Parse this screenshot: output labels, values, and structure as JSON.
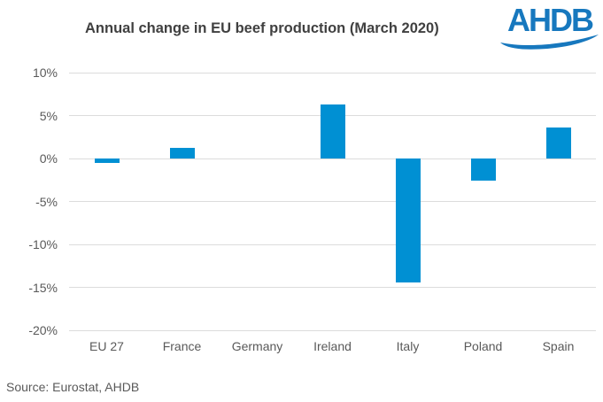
{
  "title": "Annual change in EU beef production (March 2020)",
  "logo": {
    "text": "AHDB"
  },
  "source": "Source: Eurostat, AHDB",
  "colors": {
    "bar": "#0090D3",
    "grid": "#DCDCDC",
    "title_text": "#404040",
    "axis_text": "#595959",
    "logo_blue": "#1778BE"
  },
  "chart_data": {
    "type": "bar",
    "title": "Annual change in EU beef production (March 2020)",
    "categories": [
      "EU 27",
      "France",
      "Germany",
      "Ireland",
      "Italy",
      "Poland",
      "Spain"
    ],
    "values": [
      -0.5,
      1.2,
      0.0,
      6.3,
      -14.4,
      -2.6,
      3.6
    ],
    "xlabel": "",
    "ylabel": "",
    "ylim": [
      -20,
      10
    ],
    "yticks": [
      10,
      5,
      0,
      -5,
      -10,
      -15,
      -20
    ],
    "ytick_labels": [
      "10%",
      "5%",
      "0%",
      "-5%",
      "-10%",
      "-15%",
      "-20%"
    ],
    "grid": true,
    "legend": false,
    "bar_color": "#0090D3"
  }
}
